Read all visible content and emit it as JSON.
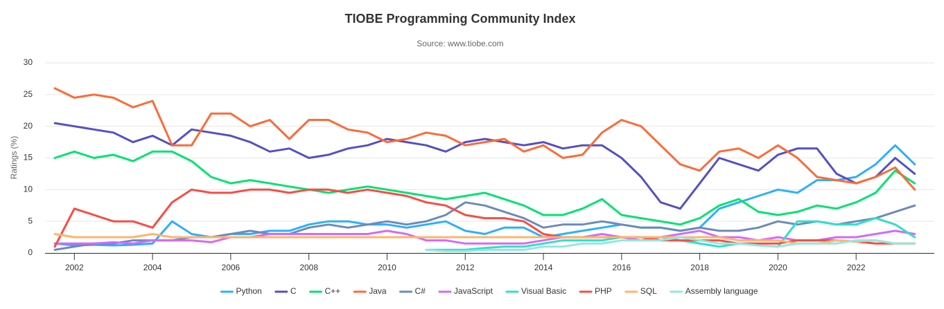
{
  "chart_data": {
    "type": "line",
    "title": "TIOBE Programming Community Index",
    "subtitle": "Source: www.tiobe.com",
    "y_label": "Ratings (%)",
    "x": [
      2001.5,
      2002,
      2002.5,
      2003,
      2003.5,
      2004,
      2004.5,
      2005,
      2005.5,
      2006,
      2006.5,
      2007,
      2007.5,
      2008,
      2008.5,
      2009,
      2009.5,
      2010,
      2010.5,
      2011,
      2011.5,
      2012,
      2012.5,
      2013,
      2013.5,
      2014,
      2014.5,
      2015,
      2015.5,
      2016,
      2016.5,
      2017,
      2017.5,
      2018,
      2018.5,
      2019,
      2019.5,
      2020,
      2020.5,
      2021,
      2021.5,
      2022,
      2022.5,
      2023,
      2023.5
    ],
    "xlim": [
      2001.25,
      2024
    ],
    "xticks": [
      2002,
      2004,
      2006,
      2008,
      2010,
      2012,
      2014,
      2016,
      2018,
      2020,
      2022
    ],
    "ylim": [
      0,
      30
    ],
    "yticks": [
      0,
      5,
      10,
      15,
      20,
      25,
      30
    ],
    "grid": true,
    "legend": "bottom",
    "series": [
      {
        "name": "Python",
        "color": "#2caffe",
        "values": [
          1.5,
          1.2,
          1.3,
          1.2,
          1.3,
          1.5,
          5,
          3,
          2.5,
          3,
          3,
          3.5,
          3.5,
          4.5,
          5,
          5,
          4.5,
          4.5,
          4,
          4.5,
          5,
          3.5,
          3,
          4,
          4,
          2.5,
          3,
          3.5,
          4,
          4.5,
          4,
          4,
          3.5,
          4,
          7,
          8,
          9,
          10,
          9.5,
          11.5,
          11.5,
          12,
          14,
          17,
          14
        ]
      },
      {
        "name": "C",
        "color": "#544fc5",
        "values": [
          20.5,
          20,
          19.5,
          19,
          17.5,
          18.5,
          17,
          19.5,
          19,
          18.5,
          17.5,
          16,
          16.5,
          15,
          15.5,
          16.5,
          17,
          18,
          17.5,
          17,
          16,
          17.5,
          18,
          17.5,
          17,
          17.5,
          16.5,
          17,
          17,
          15,
          12,
          8,
          7,
          11,
          15,
          14,
          13,
          15.5,
          16.5,
          16.5,
          12.5,
          11,
          12,
          15,
          12.5
        ]
      },
      {
        "name": "C++",
        "color": "#00e272",
        "values": [
          15,
          16,
          15,
          15.5,
          14.5,
          16,
          16,
          14.5,
          12,
          11,
          11.5,
          11,
          10.5,
          10,
          9.5,
          10,
          10.5,
          10,
          9.5,
          9,
          8.5,
          9,
          9.5,
          8.5,
          7.5,
          6,
          6,
          7,
          8.5,
          6,
          5.5,
          5,
          4.5,
          5.5,
          7.5,
          8.5,
          6.5,
          6,
          6.5,
          7.5,
          7,
          8,
          9.5,
          13,
          11
        ]
      },
      {
        "name": "Java",
        "color": "#fe6a35",
        "values": [
          26,
          24.5,
          25,
          24.5,
          23,
          24,
          17,
          17,
          22,
          22,
          20,
          21,
          18,
          21,
          21,
          19.5,
          19,
          17.5,
          18,
          19,
          18.5,
          17,
          17.5,
          18,
          16,
          17,
          15,
          15.5,
          19,
          21,
          20,
          17,
          14,
          13,
          16,
          16.5,
          15,
          17,
          15,
          12,
          11.5,
          11,
          12,
          13.5,
          10
        ]
      },
      {
        "name": "C#",
        "color": "#6b8abc",
        "values": [
          0.5,
          1,
          1.5,
          1.5,
          2,
          2,
          2,
          2.5,
          2.5,
          3,
          3.5,
          3,
          3,
          4,
          4.5,
          4,
          4.5,
          5,
          4.5,
          5,
          6,
          8,
          7.5,
          6.5,
          5.5,
          4,
          4.5,
          4.5,
          5,
          4.5,
          4,
          4,
          3.5,
          4,
          3.5,
          3.5,
          4,
          5,
          4.5,
          5,
          4.5,
          5,
          5.5,
          6.5,
          7.5
        ]
      },
      {
        "name": "JavaScript",
        "color": "#d568fb",
        "values": [
          1.5,
          1.5,
          1.5,
          1.7,
          1.5,
          2,
          2,
          2,
          1.7,
          2.5,
          2.5,
          3,
          3,
          3,
          3,
          3,
          3,
          3.5,
          3,
          2,
          2,
          1.5,
          1.5,
          1.5,
          1.5,
          2,
          2.5,
          2.5,
          3,
          2.5,
          2,
          2.5,
          3,
          3.5,
          2.5,
          2.5,
          2,
          2.5,
          2,
          2,
          2.5,
          2.5,
          3,
          3.5,
          3
        ]
      },
      {
        "name": "Visual Basic",
        "color": "#2ee0ca",
        "values": [
          null,
          null,
          null,
          null,
          null,
          null,
          null,
          null,
          null,
          null,
          null,
          null,
          null,
          null,
          null,
          null,
          null,
          null,
          null,
          0.5,
          0.5,
          0.5,
          0.8,
          1,
          1,
          1.5,
          2,
          2,
          2,
          2.5,
          2.5,
          2.5,
          2,
          1.5,
          1,
          1.5,
          1.2,
          1,
          5,
          5,
          4.5,
          4.5,
          5.5,
          4.5,
          2.5
        ]
      },
      {
        "name": "PHP",
        "color": "#fa4b42",
        "values": [
          1,
          7,
          6,
          5,
          5,
          4,
          8,
          10,
          9.5,
          9.5,
          10,
          10,
          9.5,
          10,
          10,
          9.5,
          10,
          9.5,
          9,
          8,
          7.5,
          6,
          5.5,
          5.5,
          5,
          3,
          2.5,
          2.5,
          2.5,
          2.5,
          2.5,
          2,
          2,
          2,
          2,
          1.5,
          1.5,
          1.5,
          2,
          2,
          2,
          1.8,
          1.5,
          1.5,
          1.5
        ]
      },
      {
        "name": "SQL",
        "color": "#feb56a",
        "values": [
          3,
          2.5,
          2.5,
          2.5,
          2.5,
          3,
          2.5,
          2.5,
          2.5,
          2.5,
          2.5,
          2.5,
          2.5,
          2.5,
          2.5,
          2.5,
          2.5,
          2.5,
          2.5,
          2.5,
          2.5,
          2.5,
          2.5,
          2.5,
          2.5,
          2.5,
          2.5,
          2.5,
          2.5,
          2.5,
          2.5,
          2.5,
          2.5,
          2.5,
          2.5,
          2,
          2,
          2,
          1.5,
          1.5,
          2,
          1.8,
          2,
          1.5,
          1.5
        ]
      },
      {
        "name": "Assembly language",
        "color": "#91e8e1",
        "values": [
          null,
          null,
          null,
          null,
          null,
          null,
          null,
          null,
          null,
          null,
          null,
          null,
          null,
          null,
          null,
          null,
          null,
          null,
          null,
          0.5,
          0.3,
          0.3,
          0.5,
          0.5,
          0.5,
          1,
          1,
          1.5,
          1.5,
          2,
          2,
          2,
          2.5,
          2,
          1.5,
          1.5,
          1.2,
          1,
          1.5,
          1.5,
          1.5,
          2,
          2,
          1.5,
          1.5
        ]
      }
    ]
  }
}
